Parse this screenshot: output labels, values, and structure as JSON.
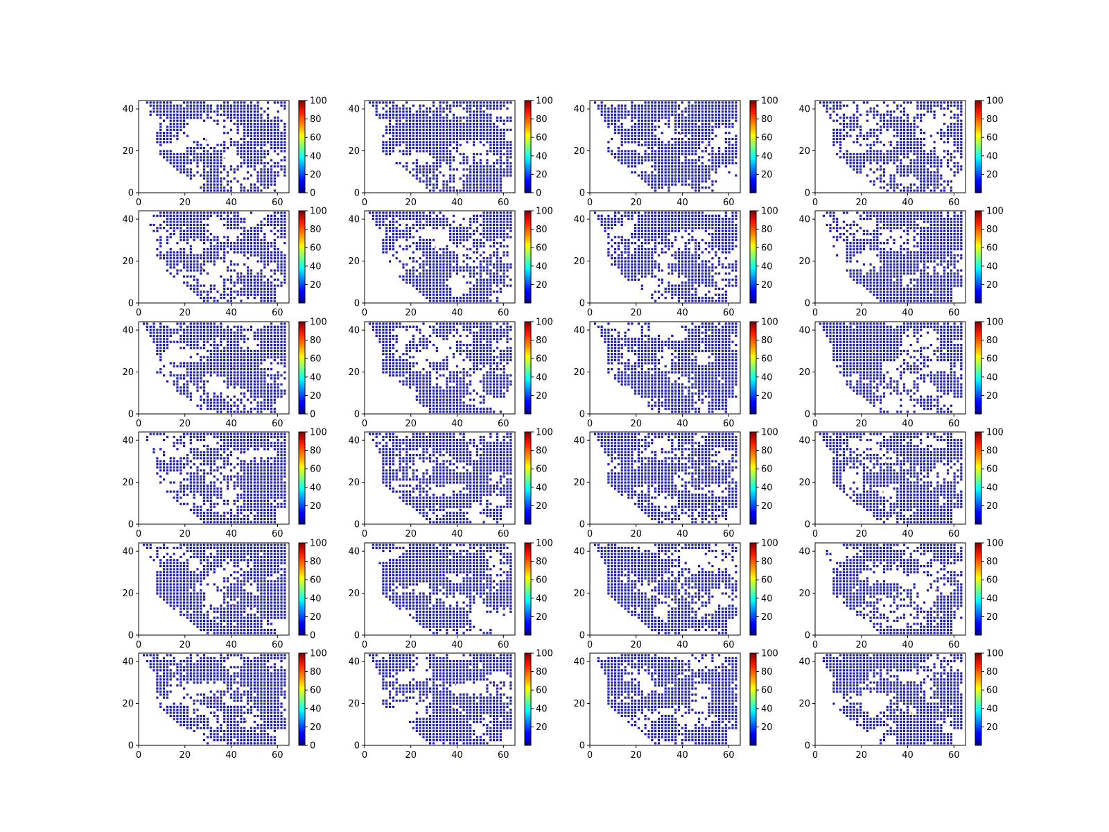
{
  "figure": {
    "rows": 6,
    "cols": 4,
    "colormap": "jet",
    "marker_color": "#1f1fe0",
    "marker_edge": "#00007a",
    "background": "#ffffff"
  },
  "chart_data": [
    {
      "panel": 1,
      "type": "scatter",
      "seed": 11,
      "xlim": [
        0,
        65
      ],
      "ylim": [
        0,
        44
      ],
      "xticks": [
        "0",
        "20",
        "40",
        "60"
      ],
      "yticks": [
        "0",
        "20",
        "40"
      ],
      "colorbar_ticks": [
        "0",
        "20",
        "40",
        "60",
        "80",
        "100"
      ],
      "clim": [
        0,
        100
      ],
      "colormap": "jet",
      "grid": false
    },
    {
      "panel": 2,
      "type": "scatter",
      "seed": 12,
      "xlim": [
        0,
        65
      ],
      "ylim": [
        0,
        44
      ],
      "xticks": [
        "0",
        "20",
        "40",
        "60"
      ],
      "yticks": [
        "0",
        "20",
        "40"
      ],
      "colorbar_ticks": [
        "0",
        "20",
        "40",
        "60",
        "80",
        "100"
      ],
      "clim": [
        0,
        100
      ],
      "colormap": "jet",
      "grid": false
    },
    {
      "panel": 3,
      "type": "scatter",
      "seed": 13,
      "xlim": [
        0,
        65
      ],
      "ylim": [
        0,
        44
      ],
      "xticks": [
        "0",
        "20",
        "40",
        "60"
      ],
      "yticks": [
        "0",
        "20",
        "40"
      ],
      "colorbar_ticks": [
        "20",
        "40",
        "60",
        "80",
        "100"
      ],
      "clim": [
        0,
        100
      ],
      "colormap": "jet",
      "grid": false
    },
    {
      "panel": 4,
      "type": "scatter",
      "seed": 14,
      "xlim": [
        0,
        65
      ],
      "ylim": [
        0,
        44
      ],
      "xticks": [
        "0",
        "20",
        "40",
        "60"
      ],
      "yticks": [
        "0",
        "20",
        "40"
      ],
      "colorbar_ticks": [
        "20",
        "40",
        "60",
        "80",
        "100"
      ],
      "clim": [
        0,
        100
      ],
      "colormap": "jet",
      "grid": false
    },
    {
      "panel": 5,
      "type": "scatter",
      "seed": 21,
      "xlim": [
        0,
        65
      ],
      "ylim": [
        0,
        44
      ],
      "xticks": [
        "0",
        "20",
        "40",
        "60"
      ],
      "yticks": [
        "0",
        "20",
        "40"
      ],
      "colorbar_ticks": [
        "20",
        "40",
        "60",
        "80",
        "100"
      ],
      "clim": [
        0,
        100
      ],
      "colormap": "jet",
      "grid": false
    },
    {
      "panel": 6,
      "type": "scatter",
      "seed": 22,
      "xlim": [
        0,
        65
      ],
      "ylim": [
        0,
        44
      ],
      "xticks": [
        "0",
        "20",
        "40",
        "60"
      ],
      "yticks": [
        "0",
        "20",
        "40"
      ],
      "colorbar_ticks": [
        "20",
        "40",
        "60",
        "80",
        "100"
      ],
      "clim": [
        0,
        100
      ],
      "colormap": "jet",
      "grid": false
    },
    {
      "panel": 7,
      "type": "scatter",
      "seed": 23,
      "xlim": [
        0,
        65
      ],
      "ylim": [
        0,
        44
      ],
      "xticks": [
        "0",
        "20",
        "40",
        "60"
      ],
      "yticks": [
        "0",
        "20",
        "40"
      ],
      "colorbar_ticks": [
        "20",
        "40",
        "60",
        "80",
        "100"
      ],
      "clim": [
        0,
        100
      ],
      "colormap": "jet",
      "grid": false
    },
    {
      "panel": 8,
      "type": "scatter",
      "seed": 24,
      "xlim": [
        0,
        65
      ],
      "ylim": [
        0,
        44
      ],
      "xticks": [
        "0",
        "20",
        "40",
        "60"
      ],
      "yticks": [
        "0",
        "20",
        "40"
      ],
      "colorbar_ticks": [
        "20",
        "40",
        "60",
        "80",
        "100"
      ],
      "clim": [
        0,
        100
      ],
      "colormap": "jet",
      "grid": false
    },
    {
      "panel": 9,
      "type": "scatter",
      "seed": 31,
      "xlim": [
        0,
        65
      ],
      "ylim": [
        0,
        44
      ],
      "xticks": [
        "0",
        "20",
        "40",
        "60"
      ],
      "yticks": [
        "0",
        "20",
        "40"
      ],
      "colorbar_ticks": [
        "0",
        "20",
        "40",
        "60",
        "80",
        "100"
      ],
      "clim": [
        0,
        100
      ],
      "colormap": "jet",
      "grid": false
    },
    {
      "panel": 10,
      "type": "scatter",
      "seed": 32,
      "xlim": [
        0,
        65
      ],
      "ylim": [
        0,
        44
      ],
      "xticks": [
        "0",
        "20",
        "40",
        "60"
      ],
      "yticks": [
        "0",
        "20",
        "40"
      ],
      "colorbar_ticks": [
        "20",
        "40",
        "60",
        "80",
        "100"
      ],
      "clim": [
        0,
        100
      ],
      "colormap": "jet",
      "grid": false
    },
    {
      "panel": 11,
      "type": "scatter",
      "seed": 33,
      "xlim": [
        0,
        65
      ],
      "ylim": [
        0,
        44
      ],
      "xticks": [
        "0",
        "20",
        "40",
        "60"
      ],
      "yticks": [
        "0",
        "20",
        "40"
      ],
      "colorbar_ticks": [
        "20",
        "40",
        "60",
        "80",
        "100"
      ],
      "clim": [
        0,
        100
      ],
      "colormap": "jet",
      "grid": false
    },
    {
      "panel": 12,
      "type": "scatter",
      "seed": 34,
      "xlim": [
        0,
        65
      ],
      "ylim": [
        0,
        44
      ],
      "xticks": [
        "0",
        "20",
        "40",
        "60"
      ],
      "yticks": [
        "0",
        "20",
        "40"
      ],
      "colorbar_ticks": [
        "20",
        "40",
        "60",
        "80",
        "100"
      ],
      "clim": [
        0,
        100
      ],
      "colormap": "jet",
      "grid": false
    },
    {
      "panel": 13,
      "type": "scatter",
      "seed": 41,
      "xlim": [
        0,
        65
      ],
      "ylim": [
        0,
        44
      ],
      "xticks": [
        "0",
        "20",
        "40",
        "60"
      ],
      "yticks": [
        "0",
        "20",
        "40"
      ],
      "colorbar_ticks": [
        "20",
        "40",
        "60",
        "80",
        "100"
      ],
      "clim": [
        0,
        100
      ],
      "colormap": "jet",
      "grid": false
    },
    {
      "panel": 14,
      "type": "scatter",
      "seed": 42,
      "xlim": [
        0,
        65
      ],
      "ylim": [
        0,
        44
      ],
      "xticks": [
        "0",
        "20",
        "40",
        "60"
      ],
      "yticks": [
        "0",
        "20",
        "40"
      ],
      "colorbar_ticks": [
        "20",
        "40",
        "60",
        "80",
        "100"
      ],
      "clim": [
        0,
        100
      ],
      "colormap": "jet",
      "grid": false
    },
    {
      "panel": 15,
      "type": "scatter",
      "seed": 43,
      "xlim": [
        0,
        65
      ],
      "ylim": [
        0,
        44
      ],
      "xticks": [
        "0",
        "20",
        "40",
        "60"
      ],
      "yticks": [
        "0",
        "20",
        "40"
      ],
      "colorbar_ticks": [
        "20",
        "40",
        "60",
        "80",
        "100"
      ],
      "clim": [
        0,
        100
      ],
      "colormap": "jet",
      "grid": false
    },
    {
      "panel": 16,
      "type": "scatter",
      "seed": 44,
      "xlim": [
        0,
        65
      ],
      "ylim": [
        0,
        44
      ],
      "xticks": [
        "0",
        "20",
        "40",
        "60"
      ],
      "yticks": [
        "0",
        "20",
        "40"
      ],
      "colorbar_ticks": [
        "20",
        "40",
        "60",
        "80",
        "100"
      ],
      "clim": [
        0,
        100
      ],
      "colormap": "jet",
      "grid": false
    },
    {
      "panel": 17,
      "type": "scatter",
      "seed": 51,
      "xlim": [
        0,
        65
      ],
      "ylim": [
        0,
        44
      ],
      "xticks": [
        "0",
        "20",
        "40",
        "60"
      ],
      "yticks": [
        "0",
        "20",
        "40"
      ],
      "colorbar_ticks": [
        "0",
        "20",
        "40",
        "60",
        "80",
        "100"
      ],
      "clim": [
        0,
        100
      ],
      "colormap": "jet",
      "grid": false
    },
    {
      "panel": 18,
      "type": "scatter",
      "seed": 52,
      "xlim": [
        0,
        65
      ],
      "ylim": [
        0,
        44
      ],
      "xticks": [
        "0",
        "20",
        "40",
        "60"
      ],
      "yticks": [
        "0",
        "20",
        "40"
      ],
      "colorbar_ticks": [
        "20",
        "40",
        "60",
        "80",
        "100"
      ],
      "clim": [
        0,
        100
      ],
      "colormap": "jet",
      "grid": false
    },
    {
      "panel": 19,
      "type": "scatter",
      "seed": 53,
      "xlim": [
        0,
        65
      ],
      "ylim": [
        0,
        44
      ],
      "xticks": [
        "0",
        "20",
        "40",
        "60"
      ],
      "yticks": [
        "0",
        "20",
        "40"
      ],
      "colorbar_ticks": [
        "20",
        "40",
        "60",
        "80",
        "100"
      ],
      "clim": [
        0,
        100
      ],
      "colormap": "jet",
      "grid": false
    },
    {
      "panel": 20,
      "type": "scatter",
      "seed": 54,
      "xlim": [
        0,
        65
      ],
      "ylim": [
        0,
        44
      ],
      "xticks": [
        "0",
        "20",
        "40",
        "60"
      ],
      "yticks": [
        "0",
        "20",
        "40"
      ],
      "colorbar_ticks": [
        "20",
        "40",
        "60",
        "80",
        "100"
      ],
      "clim": [
        0,
        100
      ],
      "colormap": "jet",
      "grid": false
    },
    {
      "panel": 21,
      "type": "scatter",
      "seed": 61,
      "xlim": [
        0,
        65
      ],
      "ylim": [
        0,
        44
      ],
      "xticks": [
        "0",
        "20",
        "40",
        "60"
      ],
      "yticks": [
        "0",
        "20",
        "40"
      ],
      "colorbar_ticks": [
        "0",
        "20",
        "40",
        "60",
        "80",
        "100"
      ],
      "clim": [
        0,
        100
      ],
      "colormap": "jet",
      "grid": false
    },
    {
      "panel": 22,
      "type": "scatter",
      "seed": 62,
      "xlim": [
        0,
        65
      ],
      "ylim": [
        0,
        44
      ],
      "xticks": [
        "0",
        "20",
        "40",
        "60"
      ],
      "yticks": [
        "0",
        "20",
        "40"
      ],
      "colorbar_ticks": [
        "20",
        "40",
        "60",
        "80",
        "100"
      ],
      "clim": [
        0,
        100
      ],
      "colormap": "jet",
      "grid": false
    },
    {
      "panel": 23,
      "type": "scatter",
      "seed": 63,
      "xlim": [
        0,
        65
      ],
      "ylim": [
        0,
        44
      ],
      "xticks": [
        "0",
        "20",
        "40",
        "60"
      ],
      "yticks": [
        "0",
        "20",
        "40"
      ],
      "colorbar_ticks": [
        "20",
        "40",
        "60",
        "80",
        "100"
      ],
      "clim": [
        0,
        100
      ],
      "colormap": "jet",
      "grid": false
    },
    {
      "panel": 24,
      "type": "scatter",
      "seed": 64,
      "xlim": [
        0,
        65
      ],
      "ylim": [
        0,
        44
      ],
      "xticks": [
        "0",
        "20",
        "40",
        "60"
      ],
      "yticks": [
        "0",
        "20",
        "40"
      ],
      "colorbar_ticks": [
        "20",
        "40",
        "60",
        "80",
        "100"
      ],
      "clim": [
        0,
        100
      ],
      "colormap": "jet",
      "grid": false
    }
  ]
}
